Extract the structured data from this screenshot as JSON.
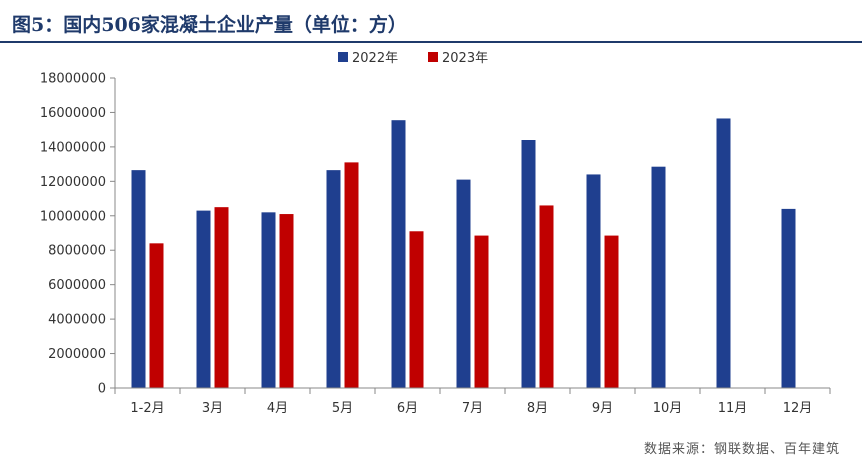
{
  "header": {
    "title": "图5：国内506家混凝土企业产量（单位：方）"
  },
  "footer": {
    "source": "数据来源：钢联数据、百年建筑"
  },
  "chart_data": {
    "type": "bar",
    "title": "图5：国内506家混凝土企业产量（单位：方）",
    "xlabel": "",
    "ylabel": "",
    "categories": [
      "1-2月",
      "3月",
      "4月",
      "5月",
      "6月",
      "7月",
      "8月",
      "9月",
      "10月",
      "11月",
      "12月"
    ],
    "series": [
      {
        "name": "2022年",
        "color": "#1f3f8f",
        "values": [
          12650000,
          10300000,
          10200000,
          12650000,
          15550000,
          12100000,
          14400000,
          12400000,
          12850000,
          15650000,
          10400000
        ]
      },
      {
        "name": "2023年",
        "color": "#c00000",
        "values": [
          8400000,
          10500000,
          10100000,
          13100000,
          9100000,
          8850000,
          10600000,
          8850000,
          null,
          null,
          null
        ]
      }
    ],
    "ylim": [
      0,
      18000000
    ],
    "yticks": [
      "0",
      "2000000",
      "4000000",
      "6000000",
      "8000000",
      "10000000",
      "12000000",
      "14000000",
      "16000000",
      "18000000"
    ],
    "legend": "top-center",
    "grid": false
  }
}
